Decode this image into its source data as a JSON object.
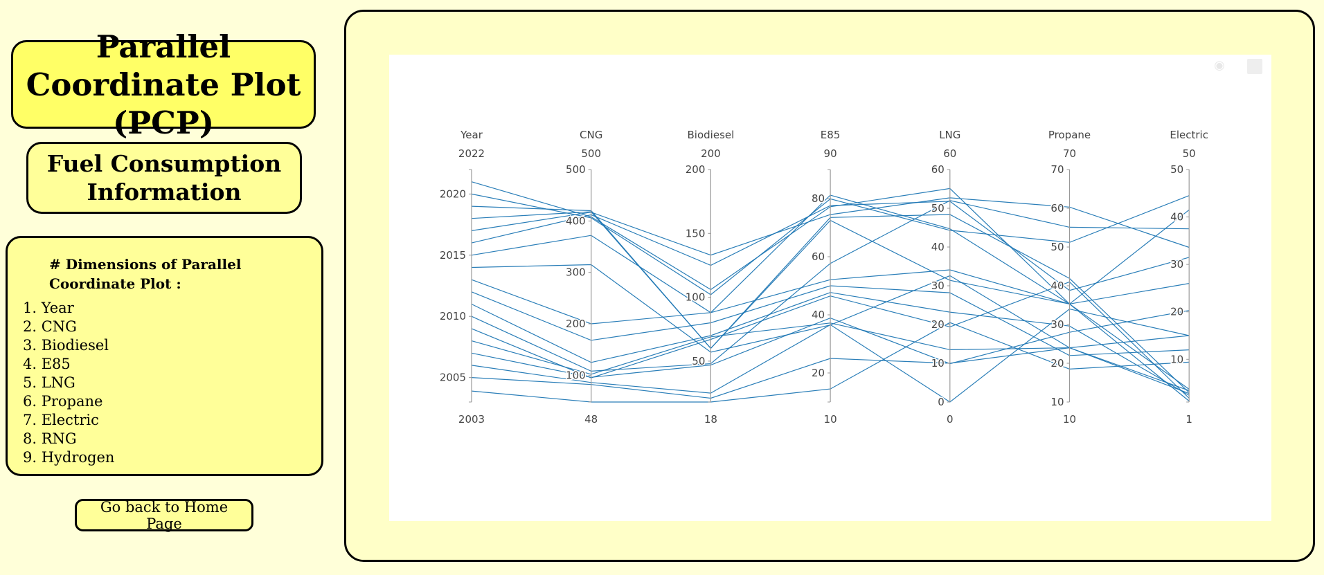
{
  "sidebar": {
    "title": "Parallel Coordinate Plot (PCP)",
    "subtitle": "Fuel Consumption Information",
    "dimensions_heading": "# Dimensions of Parallel Coordinate Plot :",
    "dimensions": [
      "1. Year",
      "2. CNG",
      "3. Biodiesel",
      "4. E85",
      "5. LNG",
      "6. Propane",
      "7. Electric",
      "8. RNG",
      "9. Hydrogen"
    ],
    "home_button": "Go back to Home Page"
  },
  "modebar": {
    "camera_icon": "camera-icon",
    "logo_icon": "plotly-logo-icon"
  },
  "colors": {
    "line": "#1f77b4",
    "axis": "#999999",
    "tick_text": "#444444",
    "page_bg": "#ffffd9",
    "title_bg": "#ffff66",
    "box_bg": "#ffff99"
  },
  "chart_data": {
    "type": "parallel_coordinates",
    "dimensions": [
      {
        "label": "Year",
        "range": [
          2003,
          2022
        ],
        "min_label": "2003",
        "max_label": "2022",
        "ticks": [
          2005,
          2010,
          2015,
          2020
        ]
      },
      {
        "label": "CNG",
        "range": [
          48,
          500
        ],
        "min_label": "48",
        "max_label": "500",
        "ticks": [
          100,
          200,
          300,
          400,
          500
        ]
      },
      {
        "label": "Biodiesel",
        "range": [
          18,
          200
        ],
        "min_label": "18",
        "max_label": "200",
        "ticks": [
          50,
          100,
          150,
          200
        ]
      },
      {
        "label": "E85",
        "range": [
          10,
          90
        ],
        "min_label": "10",
        "max_label": "90",
        "ticks": [
          20,
          40,
          60,
          80
        ]
      },
      {
        "label": "LNG",
        "range": [
          0,
          60
        ],
        "min_label": "0",
        "max_label": "60",
        "ticks": [
          0,
          10,
          20,
          30,
          40,
          50,
          60
        ]
      },
      {
        "label": "Propane",
        "range": [
          10,
          70
        ],
        "min_label": "10",
        "max_label": "70",
        "ticks": [
          10,
          20,
          30,
          40,
          50,
          60,
          70
        ]
      },
      {
        "label": "Electric",
        "range": [
          1,
          50
        ],
        "min_label": "1",
        "max_label": "50",
        "ticks": [
          10,
          20,
          30,
          40,
          50
        ]
      }
    ],
    "lines": [
      [
        2003.9,
        48,
        18,
        14.5,
        20.5,
        18.5,
        9.4
      ],
      [
        2005,
        82,
        21,
        25.0,
        10,
        24,
        2.8
      ],
      [
        2006,
        86,
        25,
        36.6,
        0,
        34,
        15
      ],
      [
        2007,
        96,
        47,
        38.9,
        9.9,
        28,
        20.3
      ],
      [
        2008,
        102,
        69,
        37.2,
        13.5,
        24,
        3.4
      ],
      [
        2009,
        95,
        67,
        46.5,
        19.4,
        41,
        1.8
      ],
      [
        2010,
        108,
        48,
        57.7,
        52,
        55.1,
        37.5
      ],
      [
        2011,
        125,
        70,
        47.7,
        23.2,
        29.6,
        2.4
      ],
      [
        2012,
        168,
        80,
        50.0,
        28.2,
        22,
        12
      ],
      [
        2013,
        200,
        88,
        52.1,
        34.1,
        35.3,
        26
      ],
      [
        2014,
        315,
        57,
        36.5,
        32.6,
        24,
        15
      ],
      [
        2015,
        372,
        88,
        81.2,
        44.7,
        35.3,
        41.5
      ],
      [
        2016,
        412,
        125,
        77.6,
        51.8,
        38.8,
        31.5
      ],
      [
        2017,
        417,
        133,
        74.5,
        52.7,
        60.3,
        33.6
      ],
      [
        2018,
        418,
        60,
        73.5,
        48.4,
        41.9,
        3
      ],
      [
        2019,
        420,
        60,
        72.5,
        31.4,
        35.3,
        3.7
      ],
      [
        2020,
        406,
        102,
        79.9,
        44.3,
        51.2,
        44.5
      ],
      [
        2021,
        408,
        106,
        77.2,
        55.1,
        35.3,
        1.2
      ]
    ]
  }
}
